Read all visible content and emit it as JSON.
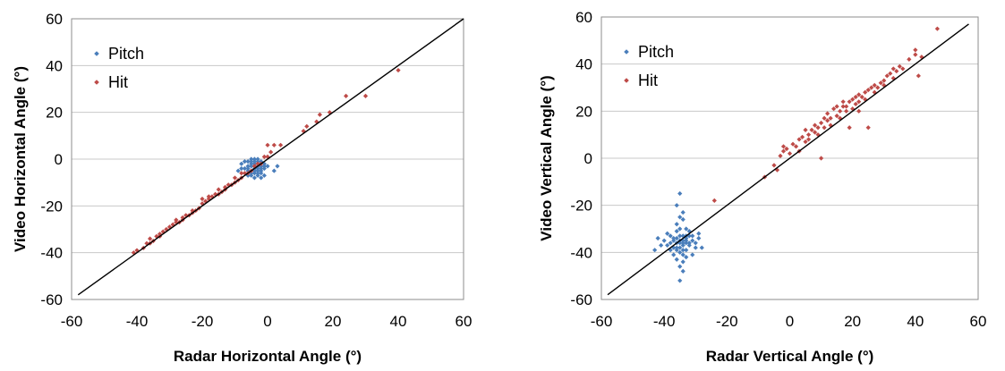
{
  "colors": {
    "pitch": "#4a7ebb",
    "hit": "#be4b48",
    "identity_line": "#000000",
    "grid": "#c8c8c8"
  },
  "chart_data": [
    {
      "type": "scatter",
      "xlabel": "Radar Horizontal Angle (°)",
      "ylabel": "Video Horizontal Angle (°)",
      "xlim": [
        -60,
        60
      ],
      "ylim": [
        -60,
        60
      ],
      "xticks": [
        "-60",
        "-40",
        "-20",
        "0",
        "20",
        "40",
        "60"
      ],
      "yticks": [
        "60",
        "40",
        "20",
        "0",
        "-20",
        "-40",
        "-60"
      ],
      "grid": "horizontal",
      "legend_placement": "top-left",
      "reference_line": {
        "from": [
          -58,
          -58
        ],
        "to": [
          60,
          60
        ]
      },
      "series": [
        {
          "name": "Pitch",
          "color": "#4a7ebb",
          "points": [
            [
              -4,
              -2
            ],
            [
              -3,
              -4
            ],
            [
              -5,
              -1
            ],
            [
              -2,
              -3
            ],
            [
              -4,
              -5
            ],
            [
              -3,
              -1
            ],
            [
              -6,
              -3
            ],
            [
              -1,
              -2
            ],
            [
              -4,
              -3
            ],
            [
              -5,
              -5
            ],
            [
              -2,
              -6
            ],
            [
              -3,
              -2
            ],
            [
              -6,
              -1
            ],
            [
              -4,
              -4
            ],
            [
              -2,
              -1
            ],
            [
              -5,
              -3
            ],
            [
              -3,
              -5
            ],
            [
              -7,
              -4
            ],
            [
              -1,
              -4
            ],
            [
              -4,
              0
            ],
            [
              -3,
              -3
            ],
            [
              -5,
              -2
            ],
            [
              -2,
              -5
            ],
            [
              -4,
              -6
            ],
            [
              -6,
              -5
            ],
            [
              -3,
              -7
            ],
            [
              -8,
              -2
            ],
            [
              0,
              -3
            ],
            [
              2,
              -5
            ],
            [
              -2,
              -8
            ],
            [
              -5,
              -7
            ],
            [
              -1,
              -7
            ],
            [
              -9,
              -5
            ],
            [
              3,
              -3
            ],
            [
              -4,
              -1
            ],
            [
              -3,
              -4
            ],
            [
              -2,
              -2
            ],
            [
              -6,
              -4
            ],
            [
              -5,
              -6
            ],
            [
              -4,
              -2
            ],
            [
              -3,
              -6
            ],
            [
              -7,
              -1
            ],
            [
              -1,
              -3
            ],
            [
              -4,
              -8
            ],
            [
              -6,
              -7
            ],
            [
              -2,
              -4
            ],
            [
              -5,
              0
            ],
            [
              -3,
              0
            ],
            [
              -8,
              -4
            ],
            [
              -4,
              -5
            ]
          ]
        },
        {
          "name": "Hit",
          "color": "#be4b48",
          "points": [
            [
              -41,
              -40
            ],
            [
              -40,
              -39
            ],
            [
              -38,
              -38
            ],
            [
              -37,
              -36
            ],
            [
              -36,
              -34
            ],
            [
              -35,
              -35
            ],
            [
              -34,
              -33
            ],
            [
              -33,
              -33
            ],
            [
              -32,
              -31
            ],
            [
              -31,
              -30
            ],
            [
              -30,
              -29
            ],
            [
              -29,
              -28
            ],
            [
              -28,
              -27
            ],
            [
              -27,
              -27
            ],
            [
              -26,
              -25
            ],
            [
              -25,
              -24
            ],
            [
              -24,
              -24
            ],
            [
              -23,
              -23
            ],
            [
              -22,
              -22
            ],
            [
              -21,
              -21
            ],
            [
              -20,
              -19
            ],
            [
              -20,
              -17
            ],
            [
              -19,
              -18
            ],
            [
              -18,
              -17
            ],
            [
              -17,
              -16
            ],
            [
              -16,
              -15
            ],
            [
              -15,
              -15
            ],
            [
              -15,
              -13
            ],
            [
              -14,
              -14
            ],
            [
              -13,
              -12
            ],
            [
              -12,
              -11
            ],
            [
              -11,
              -11
            ],
            [
              -10,
              -10
            ],
            [
              -10,
              -8
            ],
            [
              -9,
              -9
            ],
            [
              -8,
              -8
            ],
            [
              -7,
              -6
            ],
            [
              -6,
              -6
            ],
            [
              -5,
              -5
            ],
            [
              -4,
              -3
            ],
            [
              -3,
              -2
            ],
            [
              -2,
              -2
            ],
            [
              -1,
              1
            ],
            [
              0,
              1
            ],
            [
              1,
              3
            ],
            [
              0,
              6
            ],
            [
              2,
              6
            ],
            [
              4,
              6
            ],
            [
              11,
              12
            ],
            [
              12,
              14
            ],
            [
              15,
              16
            ],
            [
              16,
              19
            ],
            [
              19,
              20
            ],
            [
              24,
              27
            ],
            [
              30,
              27
            ],
            [
              40,
              38
            ],
            [
              -33,
              -32
            ],
            [
              -28,
              -26
            ],
            [
              -23,
              -22
            ],
            [
              -18,
              -16
            ],
            [
              -13,
              -13
            ],
            [
              -8,
              -6
            ],
            [
              -36,
              -36
            ],
            [
              -26,
              -26
            ]
          ]
        }
      ]
    },
    {
      "type": "scatter",
      "xlabel": "Radar Vertical Angle (°)",
      "ylabel": "Video Vertical Angle (°)",
      "xlim": [
        -60,
        60
      ],
      "ylim": [
        -60,
        60
      ],
      "xticks": [
        "-60",
        "-40",
        "-20",
        "0",
        "20",
        "40",
        "60"
      ],
      "yticks": [
        "60",
        "40",
        "20",
        "0",
        "-20",
        "-40",
        "-60"
      ],
      "grid": "horizontal",
      "legend_placement": "top-left",
      "reference_line": {
        "from": [
          -58,
          -58
        ],
        "to": [
          57,
          57
        ]
      },
      "series": [
        {
          "name": "Pitch",
          "color": "#4a7ebb",
          "points": [
            [
              -35,
              -36
            ],
            [
              -33,
              -34
            ],
            [
              -36,
              -38
            ],
            [
              -34,
              -33
            ],
            [
              -32,
              -37
            ],
            [
              -37,
              -35
            ],
            [
              -35,
              -40
            ],
            [
              -31,
              -35
            ],
            [
              -38,
              -33
            ],
            [
              -34,
              -39
            ],
            [
              -36,
              -31
            ],
            [
              -33,
              -42
            ],
            [
              -35,
              -30
            ],
            [
              -30,
              -38
            ],
            [
              -39,
              -37
            ],
            [
              -34,
              -44
            ],
            [
              -32,
              -31
            ],
            [
              -37,
              -41
            ],
            [
              -36,
              -28
            ],
            [
              -33,
              -36
            ],
            [
              -40,
              -35
            ],
            [
              -29,
              -34
            ],
            [
              -35,
              -46
            ],
            [
              -34,
              -26
            ],
            [
              -31,
              -41
            ],
            [
              -38,
              -39
            ],
            [
              -36,
              -34
            ],
            [
              -33,
              -39
            ],
            [
              -35,
              -33
            ],
            [
              -34,
              -36
            ],
            [
              -37,
              -38
            ],
            [
              -32,
              -33
            ],
            [
              -36,
              -43
            ],
            [
              -35,
              -25
            ],
            [
              -33,
              -30
            ],
            [
              -39,
              -32
            ],
            [
              -30,
              -36
            ],
            [
              -34,
              -48
            ],
            [
              -35,
              -52
            ],
            [
              -35,
              -15
            ],
            [
              -36,
              -20
            ],
            [
              -34,
              -23
            ],
            [
              -42,
              -34
            ],
            [
              -41,
              -37
            ],
            [
              -43,
              -39
            ],
            [
              -28,
              -38
            ],
            [
              -29,
              -32
            ],
            [
              -34,
              -37
            ],
            [
              -35,
              -35
            ],
            [
              -33,
              -35
            ],
            [
              -36,
              -36
            ],
            [
              -34,
              -35
            ],
            [
              -32,
              -36
            ],
            [
              -37,
              -34
            ],
            [
              -35,
              -38
            ],
            [
              -31,
              -33
            ],
            [
              -38,
              -36
            ],
            [
              -33,
              -33
            ],
            [
              -36,
              -39
            ],
            [
              -34,
              -41
            ]
          ]
        },
        {
          "name": "Hit",
          "color": "#be4b48",
          "points": [
            [
              -24,
              -18
            ],
            [
              -8,
              -8
            ],
            [
              -5,
              -3
            ],
            [
              -4,
              -5
            ],
            [
              -3,
              1
            ],
            [
              -2,
              3
            ],
            [
              -2,
              5
            ],
            [
              -1,
              4
            ],
            [
              0,
              2
            ],
            [
              1,
              6
            ],
            [
              2,
              5
            ],
            [
              3,
              8
            ],
            [
              4,
              9
            ],
            [
              5,
              7
            ],
            [
              5,
              12
            ],
            [
              6,
              10
            ],
            [
              7,
              12
            ],
            [
              8,
              11
            ],
            [
              8,
              14
            ],
            [
              9,
              13
            ],
            [
              10,
              15
            ],
            [
              10,
              0
            ],
            [
              11,
              17
            ],
            [
              12,
              16
            ],
            [
              12,
              19
            ],
            [
              13,
              17
            ],
            [
              14,
              21
            ],
            [
              15,
              18
            ],
            [
              15,
              22
            ],
            [
              16,
              20
            ],
            [
              17,
              22
            ],
            [
              17,
              24
            ],
            [
              18,
              22
            ],
            [
              19,
              24
            ],
            [
              20,
              25
            ],
            [
              21,
              23
            ],
            [
              21,
              26
            ],
            [
              22,
              27
            ],
            [
              23,
              26
            ],
            [
              24,
              28
            ],
            [
              25,
              29
            ],
            [
              25,
              13
            ],
            [
              26,
              30
            ],
            [
              27,
              31
            ],
            [
              28,
              30
            ],
            [
              29,
              32
            ],
            [
              30,
              33
            ],
            [
              31,
              35
            ],
            [
              32,
              36
            ],
            [
              33,
              34
            ],
            [
              33,
              38
            ],
            [
              34,
              37
            ],
            [
              35,
              39
            ],
            [
              36,
              38
            ],
            [
              38,
              42
            ],
            [
              40,
              44
            ],
            [
              41,
              35
            ],
            [
              40,
              46
            ],
            [
              42,
              43
            ],
            [
              47,
              55
            ],
            [
              3,
              3
            ],
            [
              6,
              8
            ],
            [
              9,
              10
            ],
            [
              13,
              14
            ],
            [
              16,
              17
            ],
            [
              20,
              21
            ],
            [
              24,
              25
            ],
            [
              27,
              28
            ],
            [
              30,
              31
            ],
            [
              11,
              13
            ],
            [
              18,
              20
            ],
            [
              22,
              24
            ],
            [
              19,
              13
            ],
            [
              22,
              20
            ]
          ]
        }
      ]
    }
  ]
}
